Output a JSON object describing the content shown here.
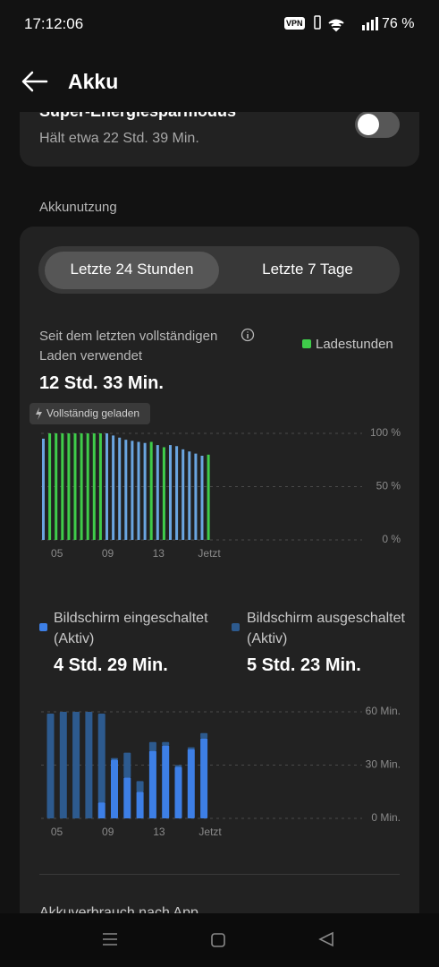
{
  "status_bar": {
    "time": "17:12:06",
    "vpn": "VPN",
    "battery": "76 %"
  },
  "header": {
    "title": "Akku"
  },
  "super_saver": {
    "title": "Super-Energiesparmodus",
    "subtitle": "Hält etwa 22 Std. 39 Min."
  },
  "section_title": "Akkunutzung",
  "tabs": [
    "Letzte 24 Stunden",
    "Letzte 7 Tage"
  ],
  "summary": {
    "label": "Seit dem letzten vollständigen Laden verwendet",
    "value": "12 Std. 33 Min."
  },
  "chart_data": [
    {
      "type": "bar",
      "annotation": "Vollständig geladen",
      "legend": "Ladestunden",
      "legend_color": "#3fcc4a",
      "categories": [
        null,
        null,
        "05",
        null,
        null,
        null,
        null,
        null,
        null,
        null,
        "09",
        null,
        null,
        null,
        null,
        null,
        null,
        null,
        "13",
        null,
        null,
        null,
        null,
        null,
        null,
        null,
        "Jetzt"
      ],
      "values": [
        95,
        100,
        100,
        100,
        100,
        100,
        100,
        100,
        100,
        100,
        100,
        98,
        96,
        94,
        93,
        92,
        91,
        92,
        89,
        87,
        89,
        88,
        85,
        83,
        81,
        79,
        80
      ],
      "colors": [
        "#6aa5e0",
        "#3fcc4a",
        "#3fcc4a",
        "#3fcc4a",
        "#3fcc4a",
        "#3fcc4a",
        "#3fcc4a",
        "#3fcc4a",
        "#3fcc4a",
        "#3fcc4a",
        "#6aa5e0",
        "#6aa5e0",
        "#6aa5e0",
        "#6aa5e0",
        "#6aa5e0",
        "#6aa5e0",
        "#6aa5e0",
        "#3fcc4a",
        "#6aa5e0",
        "#3fcc4a",
        "#6aa5e0",
        "#6aa5e0",
        "#6aa5e0",
        "#6aa5e0",
        "#6aa5e0",
        "#6aa5e0",
        "#3fcc4a"
      ],
      "ylim": [
        0,
        100
      ],
      "yticks": [
        {
          "value": 0,
          "label": "0 %"
        },
        {
          "value": 50,
          "label": "50 %"
        },
        {
          "value": 100,
          "label": "100 %"
        }
      ],
      "grid": true
    },
    {
      "type": "stacked_bar",
      "categories": [
        "05",
        null,
        null,
        null,
        "09",
        null,
        null,
        null,
        "13",
        null,
        null,
        null,
        "Jetzt"
      ],
      "series": [
        {
          "name": "Bildschirm eingeschaltet (Aktiv)",
          "total": "4 Std. 29 Min.",
          "color": "#3d7fe6",
          "values": [
            0,
            0,
            0,
            0,
            9,
            33,
            23,
            15,
            38,
            41,
            29,
            39,
            45
          ]
        },
        {
          "name": "Bildschirm ausgeschaltet (Aktiv)",
          "total": "5 Std. 23 Min.",
          "color": "#2d5a8e",
          "values": [
            59,
            60,
            60,
            60,
            50,
            1,
            14,
            6,
            5,
            2,
            1,
            1,
            3
          ]
        }
      ],
      "ylim": [
        0,
        60
      ],
      "yticks": [
        {
          "value": 0,
          "label": "0 Min."
        },
        {
          "value": 30,
          "label": "30 Min."
        },
        {
          "value": 60,
          "label": "60 Min."
        }
      ],
      "grid": true
    }
  ],
  "app_usage_title": "Akkuverbrauch nach App"
}
